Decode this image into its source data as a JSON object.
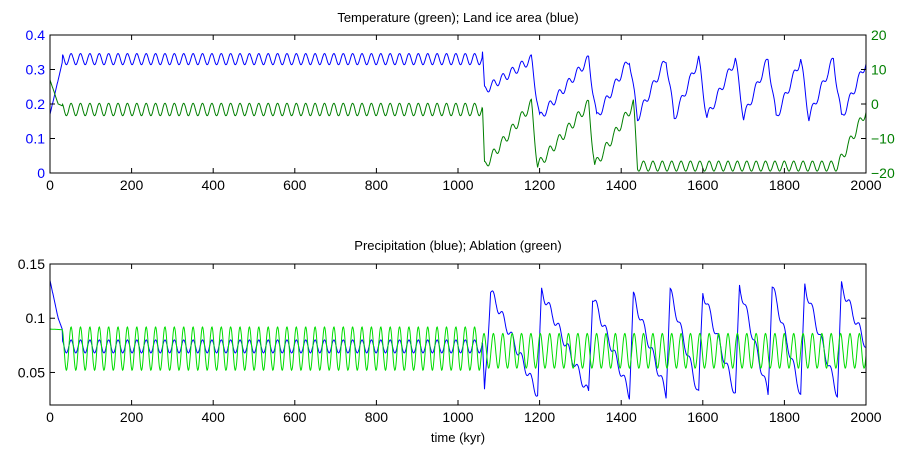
{
  "chart_data": [
    {
      "type": "line",
      "title": "Temperature (green); Land ice area (blue)",
      "xlabel": "",
      "xlim": [
        0,
        2000
      ],
      "x_ticks": [
        "0",
        "200",
        "400",
        "600",
        "800",
        "1000",
        "1200",
        "1400",
        "1600",
        "1800",
        "2000"
      ],
      "y_left": {
        "lim": [
          0,
          0.4
        ],
        "ticks": [
          "0",
          "0.1",
          "0.2",
          "0.3",
          "0.4"
        ],
        "color": "#0000ff"
      },
      "y_right": {
        "lim": [
          -20,
          20
        ],
        "ticks": [
          "−20",
          "−10",
          "0",
          "10",
          "20"
        ],
        "color": "#007f00"
      },
      "grid": false,
      "series": [
        {
          "color": "#0000ff",
          "axis": "left",
          "description_points": [
            [
              0,
              0.17
            ],
            [
              30,
              0.32
            ],
            [
              60,
              0.345
            ],
            [
              1060,
              0.345
            ],
            [
              1065,
              0.24
            ],
            [
              1180,
              0.33
            ],
            [
              1200,
              0.16
            ],
            [
              1320,
              0.33
            ],
            [
              1340,
              0.16
            ],
            [
              1420,
              0.33
            ],
            [
              1440,
              0.16
            ],
            [
              1510,
              0.33
            ],
            [
              1530,
              0.16
            ],
            [
              1590,
              0.33
            ],
            [
              1610,
              0.16
            ],
            [
              1680,
              0.33
            ],
            [
              1700,
              0.16
            ],
            [
              1760,
              0.33
            ],
            [
              1780,
              0.16
            ],
            [
              1840,
              0.33
            ],
            [
              1860,
              0.16
            ],
            [
              1920,
              0.33
            ],
            [
              1940,
              0.16
            ],
            [
              2000,
              0.32
            ]
          ],
          "oscillation": {
            "period_kyr": 23,
            "amplitude": 0.016,
            "mean_stable": 0.33
          }
        },
        {
          "color": "#007f00",
          "axis": "right",
          "description_points": [
            [
              0,
              7
            ],
            [
              20,
              0
            ],
            [
              60,
              -2
            ],
            [
              1060,
              -2
            ],
            [
              1065,
              -18
            ],
            [
              1180,
              0
            ],
            [
              1195,
              -18
            ],
            [
              1320,
              0
            ],
            [
              1335,
              -18
            ],
            [
              1430,
              0
            ],
            [
              1440,
              -18
            ],
            [
              1590,
              -18
            ],
            [
              1760,
              -18
            ],
            [
              1930,
              -18
            ],
            [
              2000,
              -2
            ]
          ],
          "oscillation": {
            "period_kyr": 23,
            "amplitude": 1.8,
            "mean_stable": -1.6
          }
        }
      ]
    },
    {
      "type": "line",
      "title": "Precipitation (blue); Ablation (green)",
      "xlabel": "time (kyr)",
      "xlim": [
        0,
        2000
      ],
      "x_ticks": [
        "0",
        "200",
        "400",
        "600",
        "800",
        "1000",
        "1200",
        "1400",
        "1600",
        "1800",
        "2000"
      ],
      "y_left": {
        "lim": [
          0.02,
          0.15
        ],
        "ticks": [
          "0.05",
          "0.1",
          "0.15"
        ],
        "color": "#000000"
      },
      "grid": false,
      "series": [
        {
          "color": "#0000ff",
          "description_points": [
            [
              0,
              0.135
            ],
            [
              20,
              0.1
            ],
            [
              40,
              0.08
            ],
            [
              1060,
              0.075
            ],
            [
              1065,
              0.03
            ],
            [
              1080,
              0.125
            ],
            [
              1195,
              0.03
            ],
            [
              1205,
              0.125
            ],
            [
              1320,
              0.03
            ],
            [
              1330,
              0.12
            ],
            [
              1420,
              0.03
            ],
            [
              1430,
              0.12
            ],
            [
              1510,
              0.03
            ],
            [
              1520,
              0.125
            ],
            [
              1590,
              0.03
            ],
            [
              1600,
              0.125
            ],
            [
              1680,
              0.03
            ],
            [
              1690,
              0.13
            ],
            [
              1760,
              0.03
            ],
            [
              1770,
              0.13
            ],
            [
              1840,
              0.03
            ],
            [
              1850,
              0.13
            ],
            [
              1930,
              0.03
            ],
            [
              1940,
              0.13
            ],
            [
              2000,
              0.075
            ]
          ],
          "oscillation": {
            "period_kyr": 23,
            "amplitude": 0.006,
            "mean_stable": 0.074
          }
        },
        {
          "color": "#00dd00",
          "description_points": [
            [
              0,
              0.09
            ],
            [
              1060,
              0.07
            ],
            [
              2000,
              0.07
            ]
          ],
          "oscillation": {
            "period_kyr": 23,
            "amplitude": 0.02,
            "mean_stable": 0.072
          }
        }
      ]
    }
  ]
}
